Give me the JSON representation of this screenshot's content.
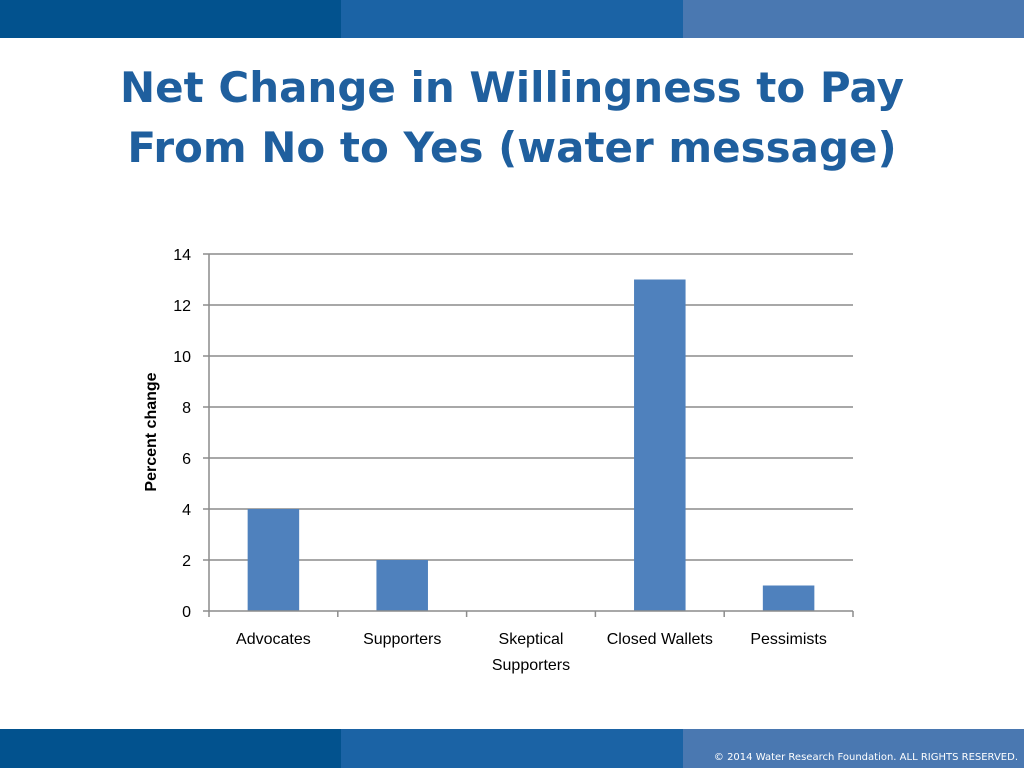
{
  "slide": {
    "title_line1": "Net Change in Willingness to Pay",
    "title_line2": "From No to Yes (water message)",
    "copyright": "© 2014 Water Research Foundation. ALL RIGHTS RESERVED.",
    "colors": {
      "band_dark": "#02528e",
      "band_mid": "#1b63a5",
      "band_light": "#4a78b1",
      "title": "#1f5f9e"
    }
  },
  "chart_data": {
    "type": "bar",
    "categories": [
      [
        "Advocates"
      ],
      [
        "Supporters"
      ],
      [
        "Skeptical",
        "Supporters"
      ],
      [
        "Closed Wallets"
      ],
      [
        "Pessimists"
      ]
    ],
    "values": [
      4,
      2,
      0,
      13,
      1
    ],
    "title": "",
    "xlabel": "",
    "ylabel": "Percent change",
    "ylim": [
      0,
      14
    ],
    "yticks": [
      "0",
      "2",
      "4",
      "6",
      "8",
      "10",
      "12",
      "14"
    ],
    "grid": true,
    "legend": "none",
    "bar_color": "#4f81bd"
  }
}
